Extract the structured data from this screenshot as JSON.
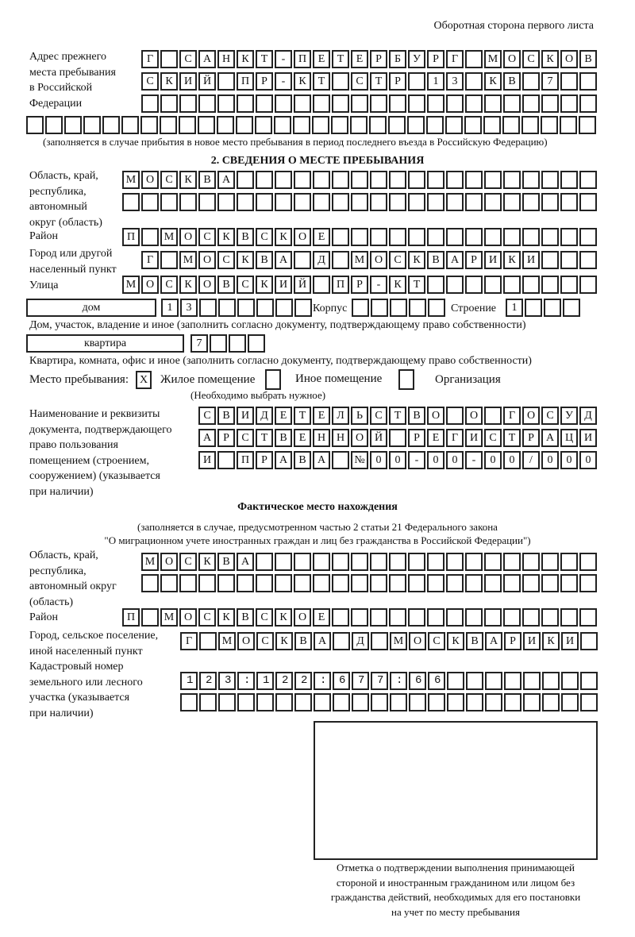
{
  "header": "Оборотная сторона первого листа",
  "prev_address": {
    "label": [
      "Адрес прежнего",
      "места пребывания",
      "в Российской",
      "Федерации"
    ],
    "rows": [
      "Г САНКТ-ПЕТЕРБУРГ МОСКОВ",
      "СКИЙ ПР-КТ СТР 13 КВ 7",
      "",
      ""
    ],
    "note": "(заполняется в случае прибытия в новое место пребывания в период последнего въезда в Российскую Федерацию)"
  },
  "section2": {
    "title": "2. СВЕДЕНИЯ О МЕСТЕ ПРЕБЫВАНИЯ",
    "region_label": [
      "Область, край,",
      "республика,",
      "автономный",
      "округ (область)"
    ],
    "region_rows": [
      "МОСКВА",
      ""
    ],
    "district_label": "Район",
    "district": "П МОСКВСКОЕ",
    "city_label": [
      "Город или другой",
      "населенный пункт"
    ],
    "city": "Г МОСКВА Д МОСКВАРИКИ",
    "street_label": "Улица",
    "street": "МОСКОВСКИЙ ПР-КТ",
    "house_type": "дом",
    "house": "13",
    "korpus_label": "Корпус",
    "korpus": "",
    "building_label": "Строение",
    "building": "1",
    "house_note": "Дом, участок, владение и иное (заполнить согласно документу, подтверждающему право собственности)",
    "flat_type": "квартира",
    "flat": "7",
    "flat_note": "Квартира, комната, офис и иное (заполнить согласно документу, подтверждающему право собственности)",
    "stay_label": "Место пребывания:",
    "stay_options": [
      {
        "label": "Жилое помещение",
        "mark": "Х"
      },
      {
        "label": "Иное помещение",
        "mark": ""
      },
      {
        "label": "Организация",
        "mark": ""
      }
    ],
    "stay_hint": "(Необходимо выбрать нужное)",
    "doc_label": [
      "Наименование и реквизиты",
      "документа, подтверждающего",
      "право пользования",
      "помещением (строением,",
      "сооружением) (указывается",
      "при наличии)"
    ],
    "doc_rows": [
      "СВИДЕТЕЛЬСТВО О ГОСУД",
      "АРСТВЕННОЙ РЕГИСТРАЦИ",
      "И ПРАВА №00-00-00/000"
    ]
  },
  "actual": {
    "title": "Фактическое место нахождения",
    "note": [
      "(заполняется в случае, предусмотренном частью 2 статьи 21 Федерального закона",
      "\"О миграционном учете иностранных граждан и лиц без гражданства в Российской Федерации\")"
    ],
    "region_label": [
      "Область, край,",
      "республика,",
      "автономный округ",
      "(область)"
    ],
    "region_rows": [
      "МОСКВА",
      ""
    ],
    "district_label": "Район",
    "district": "П МОСКВСКОЕ",
    "city_label": [
      "Город, сельское поселение,",
      "иной населенный пункт"
    ],
    "city": "Г МОСКВА Д МОСКВАРИКИ",
    "cadastre_label": [
      "Кадастровый номер",
      "земельного или лесного",
      "участка (указывается",
      "при наличии)"
    ],
    "cadastre_rows": [
      "123:122:677:66",
      ""
    ]
  },
  "stamp_caption": [
    "Отметка о подтверждении выполнения принимающей",
    "стороной и иностранным гражданином или лицом без",
    "гражданства действий, необходимых для его постановки",
    "на учет по месту пребывания"
  ]
}
